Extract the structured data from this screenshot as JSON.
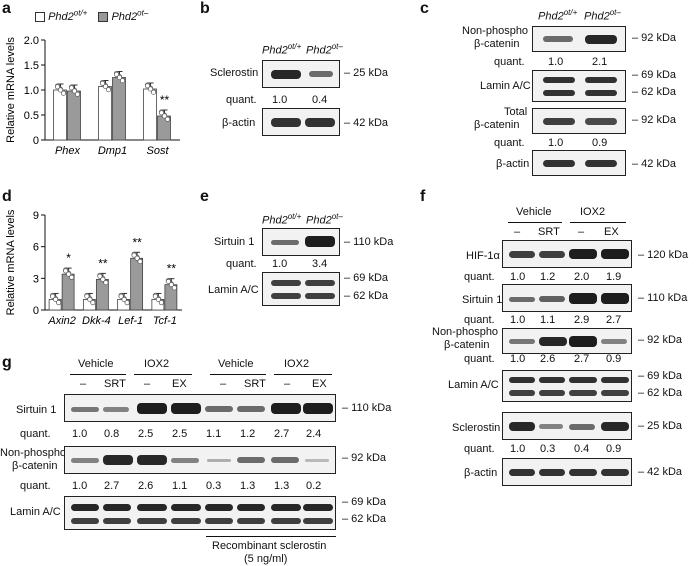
{
  "panel_labels": {
    "a": "a",
    "b": "b",
    "c": "c",
    "d": "d",
    "e": "e",
    "f": "f",
    "g": "g"
  },
  "genotypes": {
    "ctrl": "Phd2",
    "ctrl_sup": "ot/+",
    "ko": "Phd2",
    "ko_sup": "ot–"
  },
  "chart_data": [
    {
      "type": "bar",
      "panel": "a",
      "categories": [
        "Phex",
        "Dmp1",
        "Sost"
      ],
      "series": [
        {
          "name": "Phd2ot/+",
          "values": [
            1.0,
            1.07,
            1.02
          ]
        },
        {
          "name": "Phd2ot–",
          "values": [
            0.98,
            1.25,
            0.48
          ]
        }
      ],
      "significance": [
        "",
        "",
        "**"
      ],
      "ylabel": "Relative mRNA levels",
      "ylim": [
        0,
        2.0
      ],
      "yticks": [
        "0",
        "0.5",
        "1.0",
        "1.5",
        "2.0"
      ],
      "legend": "top-left"
    },
    {
      "type": "bar",
      "panel": "d",
      "categories": [
        "Axin2",
        "Dkk-4",
        "Lef-1",
        "Tcf-1"
      ],
      "series": [
        {
          "name": "Phd2ot/+",
          "values": [
            1.0,
            1.0,
            1.0,
            1.0
          ]
        },
        {
          "name": "Phd2ot–",
          "values": [
            3.4,
            2.9,
            4.9,
            2.4
          ]
        }
      ],
      "significance": [
        "*",
        "**",
        "**",
        "**"
      ],
      "ylabel": "Relative mRNA levels",
      "ylim": [
        0,
        9
      ],
      "yticks": [
        "0",
        "3",
        "6",
        "9"
      ]
    }
  ],
  "b": {
    "rows": [
      {
        "label": "Sclerostin",
        "kda": "– 25 kDa"
      },
      {
        "label": "β-actin",
        "kda": "– 42 kDa"
      }
    ],
    "quant_label": "quant.",
    "quant": [
      "1.0",
      "0.4"
    ],
    "band_levels": [
      1.0,
      0.4
    ]
  },
  "c": {
    "rows": [
      {
        "label1": "Non-phospho",
        "label2": "β-catenin",
        "kda": "– 92 kDa"
      },
      {
        "label": "Lamin A/C",
        "kda1": "– 69 kDa",
        "kda2": "– 62 kDa"
      },
      {
        "label1": "Total",
        "label2": "β-catenin",
        "kda": "– 92 kDa"
      },
      {
        "label": "β-actin",
        "kda": "– 42 kDa"
      }
    ],
    "quant_label": "quant.",
    "quant1": [
      "1.0",
      "2.1"
    ],
    "quant2": [
      "1.0",
      "0.9"
    ]
  },
  "e": {
    "rows": [
      {
        "label": "Sirtuin 1",
        "kda": "– 110 kDa"
      },
      {
        "label": "Lamin A/C",
        "kda1": "– 69 kDa",
        "kda2": "– 62 kDa"
      }
    ],
    "quant_label": "quant.",
    "quant": [
      "1.0",
      "3.4"
    ]
  },
  "f": {
    "groups": [
      "Vehicle",
      "IOX2"
    ],
    "lanes": [
      "–",
      "SRT",
      "–",
      "EX"
    ],
    "rows": [
      {
        "label": "HIF-1α",
        "kda": "– 120 kDa"
      },
      {
        "label": "Sirtuin 1",
        "kda": "– 110 kDa"
      },
      {
        "label1": "Non-phospho",
        "label2": "β-catenin",
        "kda": "– 92 kDa"
      },
      {
        "label": "Lamin A/C",
        "kda1": "– 69 kDa",
        "kda2": "– 62 kDa"
      },
      {
        "label": "Sclerostin",
        "kda": "– 25 kDa"
      },
      {
        "label": "β-actin",
        "kda": "– 42 kDa"
      }
    ],
    "quant_label": "quant.",
    "q_hif": [
      "1.0",
      "1.2",
      "2.0",
      "1.9"
    ],
    "q_sirt": [
      "1.0",
      "1.1",
      "2.9",
      "2.7"
    ],
    "q_bcat": [
      "1.0",
      "2.6",
      "2.7",
      "0.9"
    ],
    "q_scl": [
      "1.0",
      "0.3",
      "0.4",
      "0.9"
    ]
  },
  "g": {
    "groups": [
      "Vehicle",
      "IOX2",
      "Vehicle",
      "IOX2"
    ],
    "lanes": [
      "–",
      "SRT",
      "–",
      "EX",
      "–",
      "SRT",
      "–",
      "EX"
    ],
    "rows": [
      {
        "label": "Sirtuin 1",
        "kda": "– 110 kDa"
      },
      {
        "label1": "Non-phospho",
        "label2": "β-catenin",
        "kda": "– 92 kDa"
      },
      {
        "label": "Lamin A/C",
        "kda1": "– 69 kDa",
        "kda2": "– 62 kDa"
      }
    ],
    "quant_label": "quant.",
    "q_sirt": [
      "1.0",
      "0.8",
      "2.5",
      "2.5",
      "1.1",
      "1.2",
      "2.7",
      "2.4"
    ],
    "q_bcat": [
      "1.0",
      "2.7",
      "2.6",
      "1.1",
      "0.3",
      "1.3",
      "1.3",
      "0.2"
    ],
    "treatment1": "Recombinant sclerostin",
    "treatment2": "(5 ng/ml)"
  }
}
